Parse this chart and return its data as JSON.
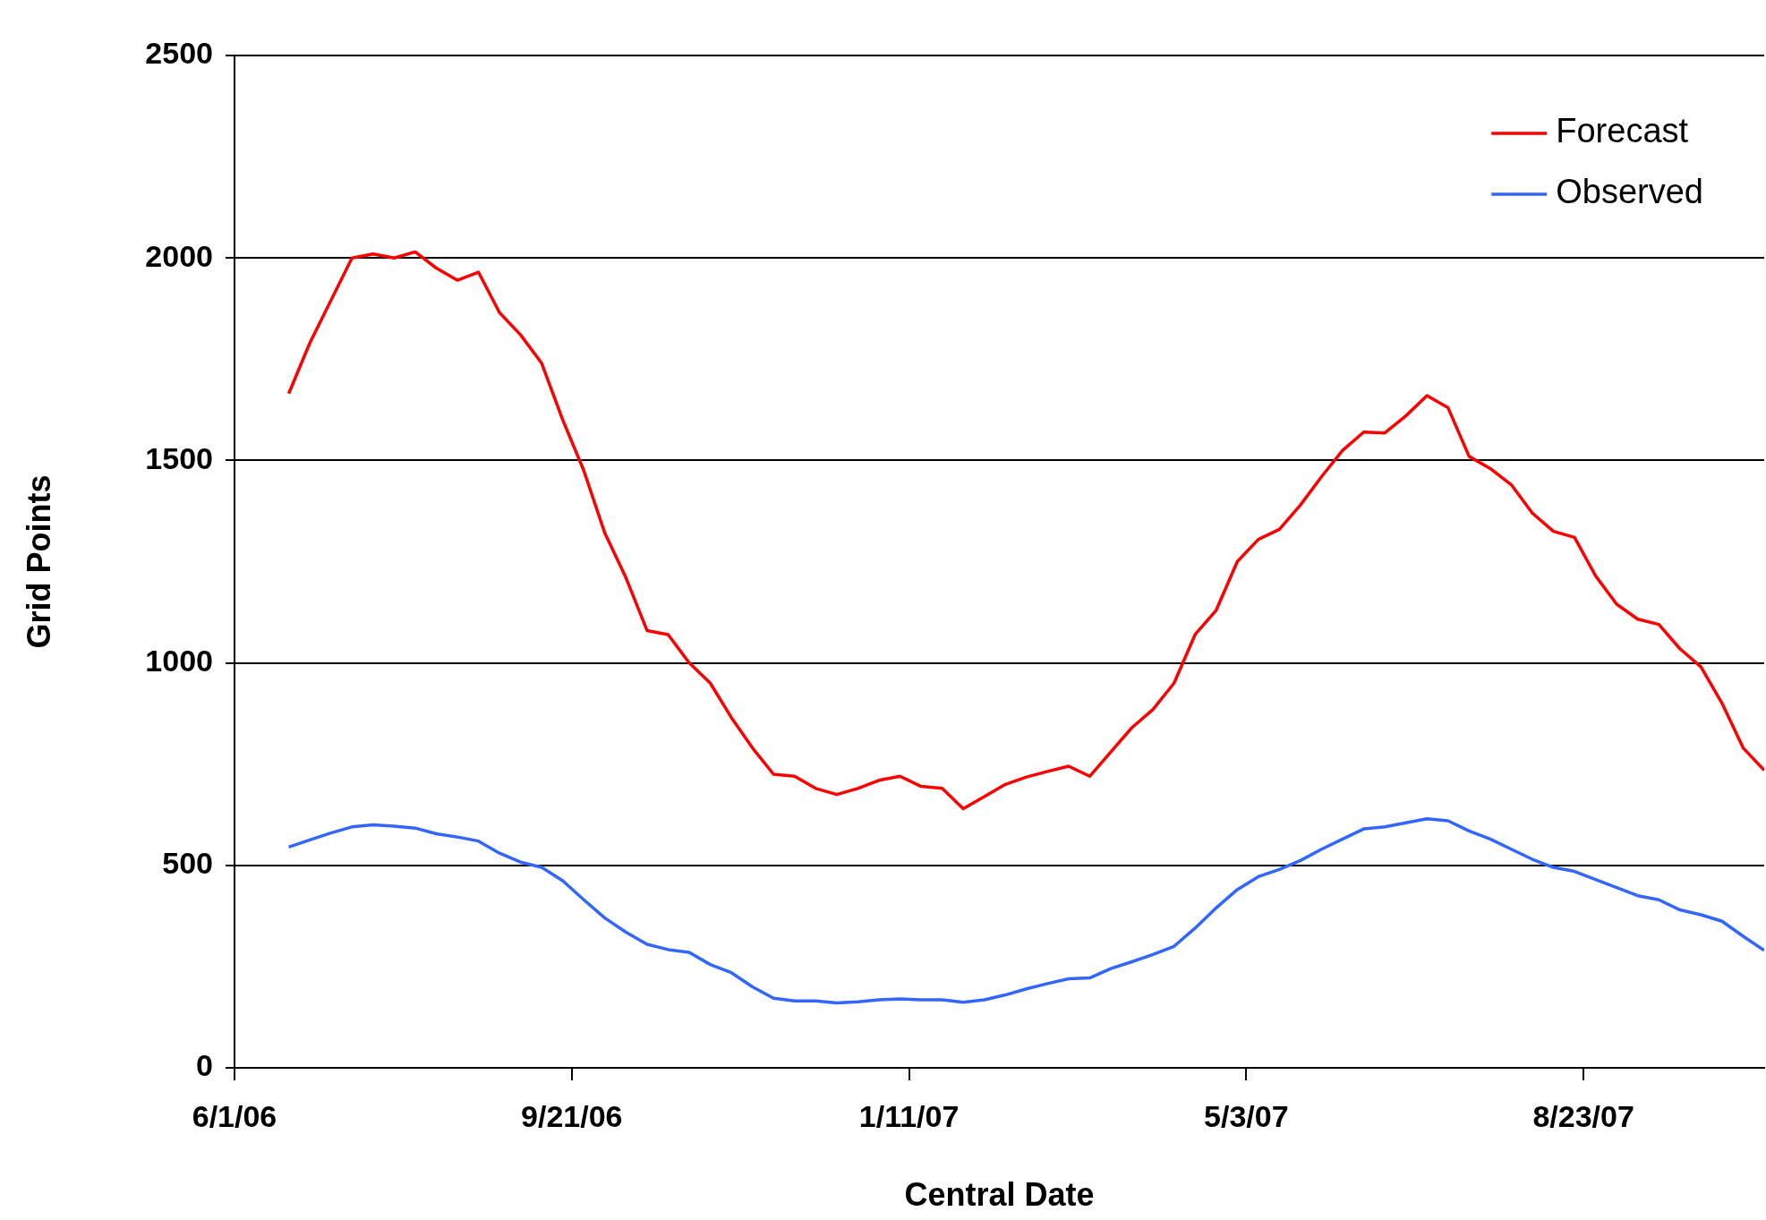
{
  "chart_data": {
    "type": "line",
    "xlabel": "Central Date",
    "ylabel": "Grid Points",
    "xlim": [
      "2006-06-01",
      "2007-10-22"
    ],
    "ylim": [
      0,
      2500
    ],
    "yticks": [
      0,
      500,
      1000,
      1500,
      2000,
      2500
    ],
    "xticks": [
      {
        "value": "2006-06-01",
        "label": "6/1/06"
      },
      {
        "value": "2006-09-21",
        "label": "9/21/06"
      },
      {
        "value": "2007-01-11",
        "label": "1/11/07"
      },
      {
        "value": "2007-05-03",
        "label": "5/3/07"
      },
      {
        "value": "2007-08-23",
        "label": "8/23/07"
      }
    ],
    "grid": "y",
    "legend": "top right",
    "marker": "none",
    "line_style": "solid",
    "x": [
      "2006-06-19",
      "2006-06-26",
      "2006-07-03",
      "2006-07-10",
      "2006-07-17",
      "2006-07-24",
      "2006-07-31",
      "2006-08-07",
      "2006-08-14",
      "2006-08-21",
      "2006-08-28",
      "2006-09-04",
      "2006-09-11",
      "2006-09-18",
      "2006-09-25",
      "2006-10-02",
      "2006-10-09",
      "2006-10-16",
      "2006-10-23",
      "2006-10-30",
      "2006-11-06",
      "2006-11-13",
      "2006-11-20",
      "2006-11-27",
      "2006-12-04",
      "2006-12-11",
      "2006-12-18",
      "2006-12-25",
      "2007-01-01",
      "2007-01-08",
      "2007-01-15",
      "2007-01-22",
      "2007-01-29",
      "2007-02-05",
      "2007-02-12",
      "2007-02-19",
      "2007-02-26",
      "2007-03-05",
      "2007-03-12",
      "2007-03-19",
      "2007-03-26",
      "2007-04-02",
      "2007-04-09",
      "2007-04-16",
      "2007-04-23",
      "2007-04-30",
      "2007-05-07",
      "2007-05-14",
      "2007-05-21",
      "2007-05-28",
      "2007-06-04",
      "2007-06-11",
      "2007-06-18",
      "2007-06-25",
      "2007-07-02",
      "2007-07-09",
      "2007-07-16",
      "2007-07-23",
      "2007-07-30",
      "2007-08-06",
      "2007-08-13",
      "2007-08-20",
      "2007-08-27",
      "2007-09-03",
      "2007-09-10",
      "2007-09-17",
      "2007-09-24",
      "2007-10-01",
      "2007-10-08",
      "2007-10-15",
      "2007-10-22"
    ],
    "series": [
      {
        "name": "Forecast",
        "color": "#ff0000",
        "values": [
          1665,
          1790,
          1895,
          2000,
          2010,
          2000,
          2015,
          1975,
          1945,
          1965,
          1865,
          1810,
          1740,
          1600,
          1475,
          1320,
          1210,
          1080,
          1070,
          1000,
          950,
          865,
          790,
          725,
          720,
          690,
          675,
          690,
          710,
          720,
          695,
          690,
          640,
          670,
          700,
          718,
          732,
          745,
          720,
          780,
          840,
          885,
          950,
          1070,
          1130,
          1250,
          1305,
          1330,
          1390,
          1460,
          1525,
          1570,
          1568,
          1610,
          1660,
          1630,
          1510,
          1480,
          1440,
          1370,
          1325,
          1310,
          1215,
          1145,
          1108,
          1095,
          1035,
          990,
          900,
          790,
          735
        ]
      },
      {
        "name": "Observed",
        "color": "#3366ff",
        "values": [
          545,
          563,
          580,
          595,
          600,
          597,
          592,
          578,
          570,
          560,
          530,
          508,
          495,
          462,
          415,
          370,
          335,
          305,
          292,
          285,
          255,
          235,
          200,
          172,
          165,
          165,
          160,
          163,
          168,
          170,
          168,
          168,
          162,
          168,
          180,
          195,
          208,
          220,
          222,
          245,
          262,
          280,
          300,
          345,
          395,
          440,
          472,
          490,
          512,
          540,
          565,
          590,
          595,
          605,
          615,
          610,
          585,
          565,
          540,
          515,
          495,
          485,
          465,
          445,
          425,
          415,
          390,
          378,
          362,
          325,
          290
        ]
      }
    ]
  }
}
